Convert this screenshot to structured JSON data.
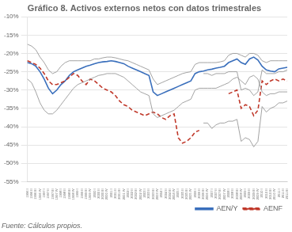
{
  "chart_data": {
    "type": "line",
    "title": "Gráfico 8. Activos externos netos con datos trimestrales",
    "footer": "Fuente: Cálculos propios.",
    "categories": [
      "1996 I",
      "1996 II",
      "1996 III",
      "1996 IV",
      "1997 I",
      "1997 II",
      "1997 III",
      "1997 IV",
      "1998 I",
      "1998 II",
      "1998 III",
      "1998 IV",
      "1999 I",
      "1999 II",
      "1999 III",
      "1999 IV",
      "2000 I",
      "2000 II",
      "2000 III",
      "2000 IV",
      "2001 I",
      "2001 II",
      "2001 III",
      "2001 IV",
      "2002 I",
      "2002 II",
      "2002 III",
      "2002 IV",
      "2003 I",
      "2003 II",
      "2003 III",
      "2003 IV",
      "2004 I",
      "2004 II",
      "2004 III",
      "2004 IV",
      "2005 I",
      "2005 II",
      "2005 III",
      "2005 IV",
      "2006 I",
      "2006 II",
      "2006 III",
      "2006 IV",
      "2007 I",
      "2007 II",
      "2007 III",
      "2007 IV",
      "2008 I",
      "2008 II",
      "2008 III",
      "2008 IV",
      "2009 I",
      "2009 II",
      "2009 III",
      "2009 IV",
      "2010 I",
      "2010 II",
      "2010 III",
      "2010 IV",
      "2011 I",
      "2011 II",
      "2011 III"
    ],
    "series": [
      {
        "color": "#999999",
        "line_style": "solid",
        "values": [
          -17.5,
          -18.0,
          -19.0,
          -21.0,
          -22.5,
          -24.5,
          -25.5,
          -25.0,
          -23.5,
          -22.5,
          -22.0,
          -22.0,
          -22.0,
          -22.0,
          -22.0,
          -22.0,
          -21.5,
          -21.5,
          -21.2,
          -21.0,
          -21.0,
          -21.2,
          -21.5,
          -21.8,
          -22.0,
          -22.5,
          -23.0,
          -23.5,
          -24.0,
          -24.5,
          -27.0,
          -28.5,
          -28.0,
          -27.5,
          -27.0,
          -26.5,
          -26.0,
          -25.5,
          -25.2,
          -25.0,
          -23.0,
          -22.5,
          -22.5,
          -22.5,
          -22.5,
          -22.5,
          -22.3,
          -22.0,
          -20.5,
          -20.0,
          -20.0,
          -20.5,
          -21.0,
          -20.0,
          -20.0,
          -20.5,
          -22.0,
          -22.5,
          -22.0,
          -22.0,
          -22.0,
          -22.0,
          -22.0
        ]
      },
      {
        "color": "#999999",
        "line_style": "solid",
        "values": [
          -27.0,
          -28.0,
          -30.5,
          -33.5,
          -35.5,
          -36.5,
          -36.5,
          -35.5,
          -34.0,
          -32.5,
          -31.0,
          -29.5,
          -28.5,
          -28.0,
          -27.5,
          -27.0,
          -26.5,
          -26.0,
          -25.8,
          -25.5,
          -25.5,
          -25.5,
          -26.0,
          -26.5,
          -27.5,
          -28.5,
          -29.5,
          -30.5,
          -31.0,
          -31.5,
          -36.5,
          -37.5,
          -37.0,
          -36.5,
          -36.0,
          -35.5,
          -34.5,
          -33.5,
          -33.0,
          -32.5,
          -30.0,
          -29.5,
          -29.5,
          -29.5,
          -29.5,
          -29.5,
          -29.0,
          -28.5,
          -28.0,
          -27.0,
          -26.5,
          -27.5,
          -28.5,
          -26.5,
          -26.0,
          -27.0,
          -30.5,
          -31.5,
          -31.0,
          -31.0,
          -30.5,
          -30.5,
          -30.5
        ]
      },
      {
        "color": "#999999",
        "line_style": "solid",
        "values": [
          null,
          null,
          null,
          null,
          null,
          null,
          null,
          null,
          null,
          null,
          null,
          null,
          null,
          null,
          null,
          null,
          null,
          null,
          null,
          null,
          null,
          null,
          null,
          null,
          null,
          null,
          null,
          null,
          null,
          null,
          null,
          null,
          null,
          null,
          null,
          null,
          null,
          null,
          null,
          null,
          null,
          null,
          -25.5,
          -25.5,
          -26.0,
          -25.5,
          -25.5,
          -25.5,
          -25.0,
          -25.0,
          -25.0,
          -30.0,
          -29.5,
          -30.0,
          -31.5,
          -30.5,
          -24.5,
          -25.5,
          -25.5,
          -25.5,
          -25.0,
          -25.0,
          -24.5
        ]
      },
      {
        "color": "#999999",
        "line_style": "solid",
        "values": [
          null,
          null,
          null,
          null,
          null,
          null,
          null,
          null,
          null,
          null,
          null,
          null,
          null,
          null,
          null,
          null,
          null,
          null,
          null,
          null,
          null,
          null,
          null,
          null,
          null,
          null,
          null,
          null,
          null,
          null,
          null,
          null,
          null,
          null,
          null,
          null,
          null,
          null,
          null,
          null,
          null,
          null,
          -39.0,
          -39.0,
          -40.5,
          -39.5,
          -39.0,
          -39.0,
          -38.5,
          -38.5,
          -38.0,
          -44.0,
          -43.0,
          -43.5,
          -45.5,
          -44.0,
          -34.5,
          -36.0,
          -35.0,
          -34.5,
          -33.5,
          -33.5,
          -33.0
        ]
      },
      {
        "name": "AENF",
        "color": "#c0392b",
        "line_style": "dashed",
        "values": [
          -22.0,
          -22.5,
          -23.0,
          -24.0,
          -25.5,
          -27.5,
          -28.5,
          -28.5,
          -28.0,
          -27.5,
          -26.5,
          -25.5,
          -26.0,
          -27.5,
          -28.5,
          -27.0,
          -27.5,
          -28.5,
          -29.5,
          -30.0,
          -30.5,
          -31.5,
          -33.0,
          -34.0,
          -34.5,
          -35.5,
          -36.0,
          -36.5,
          -37.0,
          -36.5,
          -36.0,
          -36.5,
          -37.5,
          -38.0,
          -37.0,
          -36.5,
          -43.0,
          -44.5,
          -44.0,
          -43.0,
          -41.5,
          -41.0,
          null,
          null,
          null,
          null,
          null,
          null,
          -31.0,
          -30.5,
          -30.0,
          -35.0,
          -34.0,
          -34.5,
          -37.0,
          -35.5,
          -27.5,
          -28.5,
          -27.5,
          -27.0,
          -27.5,
          -27.0,
          -27.5
        ]
      },
      {
        "name": "AEN/Y",
        "color": "#3a6fbc",
        "line_style": "solid",
        "values": [
          -22.5,
          -22.8,
          -23.5,
          -25.0,
          -27.0,
          -29.5,
          -31.0,
          -30.0,
          -28.5,
          -27.5,
          -26.0,
          -25.0,
          -24.5,
          -24.0,
          -23.5,
          -23.2,
          -22.8,
          -22.5,
          -22.3,
          -22.2,
          -22.0,
          -22.2,
          -22.5,
          -22.8,
          -23.5,
          -24.0,
          -24.5,
          -25.0,
          -25.5,
          -26.0,
          -30.5,
          -31.5,
          -31.0,
          -30.5,
          -30.0,
          -29.5,
          -29.0,
          -28.5,
          -28.0,
          -27.5,
          -25.5,
          -25.0,
          -24.8,
          -24.5,
          -24.3,
          -24.0,
          -23.8,
          -23.5,
          -22.5,
          -22.0,
          -21.5,
          -22.5,
          -23.0,
          -21.5,
          -21.0,
          -21.8,
          -23.5,
          -24.5,
          -24.8,
          -25.0,
          -24.2,
          -24.0,
          -23.8
        ]
      }
    ],
    "ylim": [
      -55,
      -10
    ],
    "yticks": [
      {
        "value": -10,
        "label": "-10%"
      },
      {
        "value": -15,
        "label": "-15%"
      },
      {
        "value": -20,
        "label": "-20%"
      },
      {
        "value": -25,
        "label": "-25%"
      },
      {
        "value": -30,
        "label": "-30%"
      },
      {
        "value": -35,
        "label": "-35%"
      },
      {
        "value": -40,
        "label": "-40%"
      },
      {
        "value": -45,
        "label": "-45%"
      },
      {
        "value": -50,
        "label": "-50%"
      },
      {
        "value": -55,
        "label": "-55%"
      }
    ],
    "grid": true,
    "legend": "lower right"
  }
}
